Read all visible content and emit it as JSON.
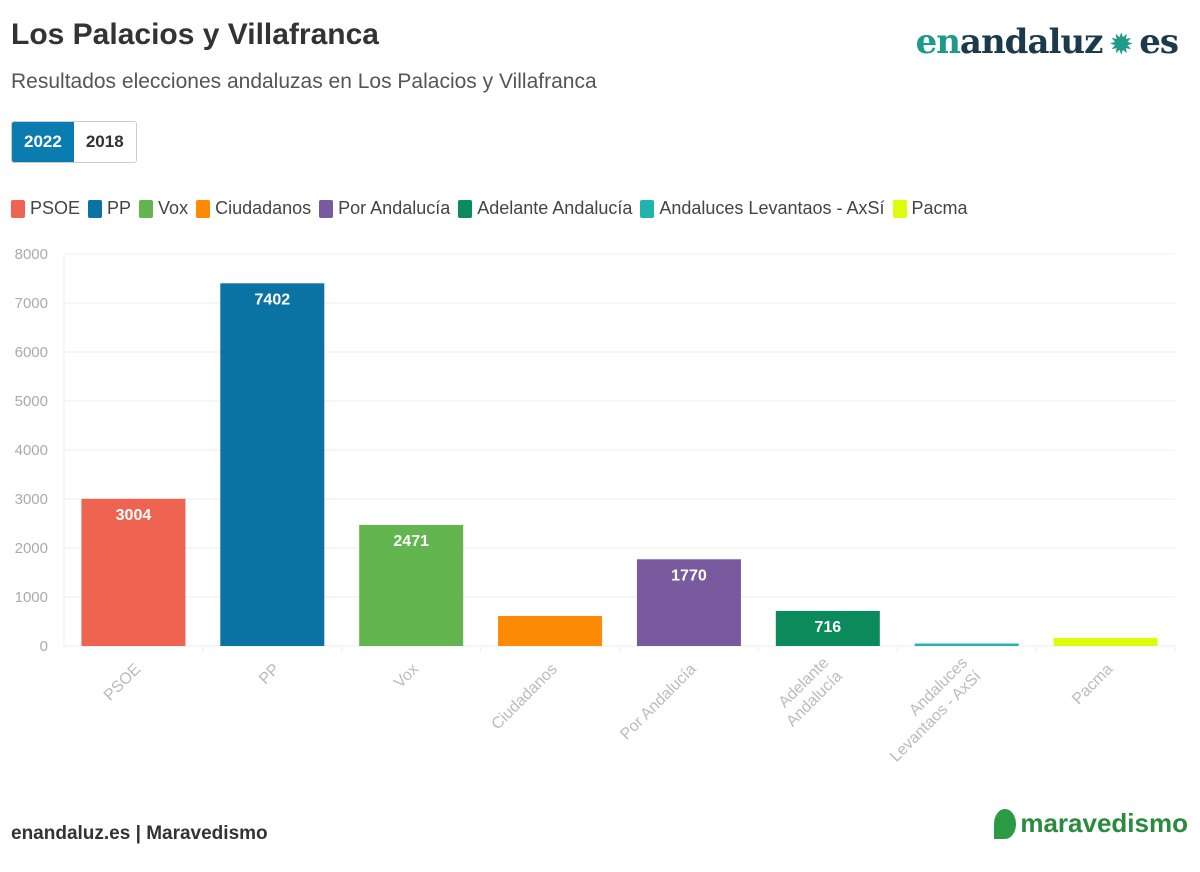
{
  "header": {
    "title": "Los Palacios y Villafranca",
    "subtitle": "Resultados elecciones andaluzas en Los Palacios y Villafranca",
    "logo": "enandaluz.es",
    "logo_en": "en",
    "logo_andaluz": "andaluz",
    "logo_es": "es"
  },
  "tabs": [
    {
      "label": "2022",
      "active": true
    },
    {
      "label": "2018",
      "active": false
    }
  ],
  "chart_data": {
    "type": "bar",
    "title": "Los Palacios y Villafranca",
    "categories": [
      "PSOE",
      "PP",
      "Vox",
      "Ciudadanos",
      "Por Andalucía",
      "Adelante Andalucía",
      "Andaluces Levantaos - AxSí",
      "Pacma"
    ],
    "values": [
      3004,
      7402,
      2471,
      612,
      1770,
      716,
      50,
      165
    ],
    "data_labels": [
      "3004",
      "7402",
      "2471",
      "",
      "1770",
      "716",
      "",
      ""
    ],
    "colors": [
      "#ef6351",
      "#0a73a3",
      "#62b54f",
      "#fd8a05",
      "#7a5a9e",
      "#0b8a5c",
      "#1fb5ad",
      "#dcfc0a"
    ],
    "ylim": [
      0,
      8000
    ],
    "yticks": [
      "0",
      "1000",
      "2000",
      "3000",
      "4000",
      "5000",
      "6000",
      "7000",
      "8000"
    ],
    "grid": true,
    "legend_position": "top-left"
  },
  "footer": {
    "source": "enandaluz.es | Maravedismo",
    "logo": "maravedismo"
  }
}
